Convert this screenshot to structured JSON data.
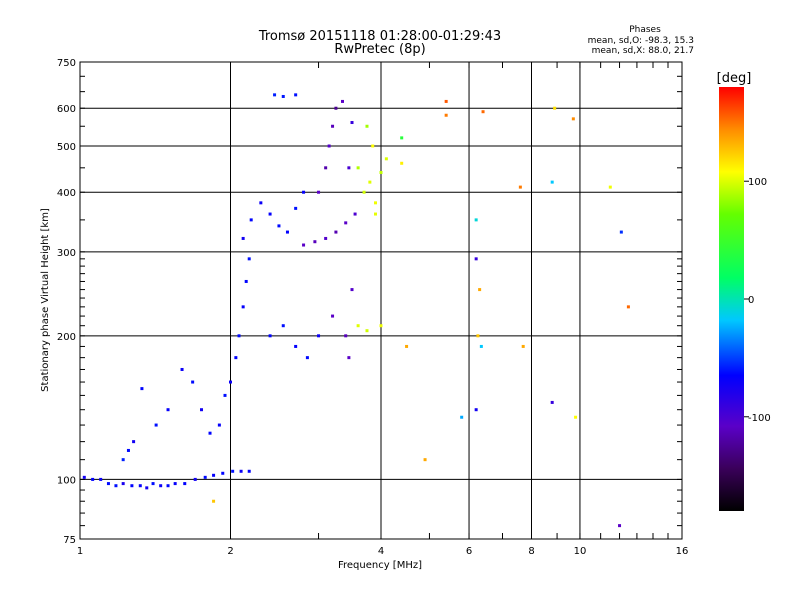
{
  "chart_data": {
    "type": "scatter",
    "title": "Tromsø 20151118 01:28:00-01:29:43",
    "subtitle": "RwPretec (8p)",
    "xlabel": "Frequency [MHz]",
    "ylabel": "Stationary phase Virtual Height [km]",
    "x_scale": "log",
    "y_scale": "log",
    "xlim": [
      1,
      16
    ],
    "ylim": [
      75,
      750
    ],
    "x_ticks": [
      1,
      2,
      4,
      6,
      8,
      10,
      16
    ],
    "x_tick_labels": [
      "1",
      "2",
      "4",
      "6",
      "8",
      "10",
      "16"
    ],
    "y_ticks": [
      75,
      100,
      200,
      300,
      400,
      500,
      600,
      750
    ],
    "y_tick_labels": [
      "75",
      "100",
      "200",
      "300",
      "400",
      "500",
      "600",
      "750"
    ],
    "grid": true,
    "stats": {
      "heading": "Phases",
      "line_o": "mean, sd,O: -98.3, 15.3",
      "line_x": "mean, sd,X:  88.0, 21.7"
    },
    "colorbar": {
      "label": "[deg]",
      "range": [
        -180,
        180
      ],
      "ticks": [
        100,
        0,
        -100
      ],
      "tick_labels": [
        "100",
        "0",
        "-100"
      ]
    },
    "series": [
      {
        "values": [
          {
            "x": 1.02,
            "y": 101,
            "phase": -110
          },
          {
            "x": 1.06,
            "y": 100,
            "phase": -105
          },
          {
            "x": 1.1,
            "y": 100,
            "phase": -108
          },
          {
            "x": 1.14,
            "y": 98,
            "phase": -102
          },
          {
            "x": 1.18,
            "y": 97,
            "phase": -100
          },
          {
            "x": 1.22,
            "y": 98,
            "phase": -112
          },
          {
            "x": 1.27,
            "y": 97,
            "phase": -104
          },
          {
            "x": 1.32,
            "y": 97,
            "phase": -106
          },
          {
            "x": 1.36,
            "y": 96,
            "phase": -110
          },
          {
            "x": 1.4,
            "y": 98,
            "phase": -101
          },
          {
            "x": 1.45,
            "y": 97,
            "phase": -108
          },
          {
            "x": 1.5,
            "y": 97,
            "phase": -103
          },
          {
            "x": 1.55,
            "y": 98,
            "phase": -107
          },
          {
            "x": 1.62,
            "y": 98,
            "phase": -105
          },
          {
            "x": 1.7,
            "y": 100,
            "phase": -110
          },
          {
            "x": 1.78,
            "y": 101,
            "phase": -102
          },
          {
            "x": 1.85,
            "y": 102,
            "phase": -106
          },
          {
            "x": 1.93,
            "y": 103,
            "phase": -104
          },
          {
            "x": 2.02,
            "y": 104,
            "phase": -100
          },
          {
            "x": 2.1,
            "y": 104,
            "phase": -108
          },
          {
            "x": 2.18,
            "y": 104,
            "phase": -105
          },
          {
            "x": 1.22,
            "y": 110,
            "phase": -95
          },
          {
            "x": 1.25,
            "y": 115,
            "phase": -102
          },
          {
            "x": 1.28,
            "y": 120,
            "phase": -110
          },
          {
            "x": 1.33,
            "y": 155,
            "phase": -104
          },
          {
            "x": 1.42,
            "y": 130,
            "phase": -100
          },
          {
            "x": 1.5,
            "y": 140,
            "phase": -106
          },
          {
            "x": 1.6,
            "y": 170,
            "phase": -108
          },
          {
            "x": 1.68,
            "y": 160,
            "phase": -102
          },
          {
            "x": 1.75,
            "y": 140,
            "phase": -110
          },
          {
            "x": 1.82,
            "y": 125,
            "phase": -104
          },
          {
            "x": 1.9,
            "y": 130,
            "phase": -106
          },
          {
            "x": 1.95,
            "y": 150,
            "phase": -100
          },
          {
            "x": 2.0,
            "y": 160,
            "phase": -108
          },
          {
            "x": 2.05,
            "y": 180,
            "phase": -105
          },
          {
            "x": 2.08,
            "y": 200,
            "phase": -102
          },
          {
            "x": 2.12,
            "y": 230,
            "phase": -106
          },
          {
            "x": 2.15,
            "y": 260,
            "phase": -104
          },
          {
            "x": 2.18,
            "y": 290,
            "phase": -100
          },
          {
            "x": 2.12,
            "y": 320,
            "phase": -110
          },
          {
            "x": 2.2,
            "y": 350,
            "phase": -104
          },
          {
            "x": 2.3,
            "y": 380,
            "phase": -108
          },
          {
            "x": 2.4,
            "y": 360,
            "phase": -106
          },
          {
            "x": 2.5,
            "y": 340,
            "phase": -102
          },
          {
            "x": 2.6,
            "y": 330,
            "phase": -105
          },
          {
            "x": 2.7,
            "y": 370,
            "phase": -100
          },
          {
            "x": 2.8,
            "y": 400,
            "phase": -106
          },
          {
            "x": 2.45,
            "y": 640,
            "phase": -95
          },
          {
            "x": 2.55,
            "y": 635,
            "phase": -98
          },
          {
            "x": 2.7,
            "y": 640,
            "phase": -100
          },
          {
            "x": 3.0,
            "y": 400,
            "phase": -130
          },
          {
            "x": 3.1,
            "y": 450,
            "phase": -135
          },
          {
            "x": 3.15,
            "y": 500,
            "phase": -128
          },
          {
            "x": 3.2,
            "y": 550,
            "phase": -132
          },
          {
            "x": 3.25,
            "y": 600,
            "phase": -140
          },
          {
            "x": 3.35,
            "y": 620,
            "phase": -130
          },
          {
            "x": 3.45,
            "y": 450,
            "phase": -125
          },
          {
            "x": 3.5,
            "y": 560,
            "phase": -120
          },
          {
            "x": 2.8,
            "y": 310,
            "phase": -130
          },
          {
            "x": 2.95,
            "y": 315,
            "phase": -132
          },
          {
            "x": 3.1,
            "y": 320,
            "phase": -128
          },
          {
            "x": 3.25,
            "y": 330,
            "phase": -134
          },
          {
            "x": 3.4,
            "y": 345,
            "phase": -130
          },
          {
            "x": 3.55,
            "y": 360,
            "phase": -126
          },
          {
            "x": 2.4,
            "y": 200,
            "phase": -104
          },
          {
            "x": 2.55,
            "y": 210,
            "phase": -100
          },
          {
            "x": 2.7,
            "y": 190,
            "phase": -106
          },
          {
            "x": 2.85,
            "y": 180,
            "phase": -102
          },
          {
            "x": 3.0,
            "y": 200,
            "phase": -108
          },
          {
            "x": 3.2,
            "y": 220,
            "phase": -130
          },
          {
            "x": 3.4,
            "y": 200,
            "phase": -132
          },
          {
            "x": 3.5,
            "y": 250,
            "phase": -128
          },
          {
            "x": 3.45,
            "y": 180,
            "phase": -130
          },
          {
            "x": 3.6,
            "y": 450,
            "phase": 75
          },
          {
            "x": 3.7,
            "y": 400,
            "phase": 85
          },
          {
            "x": 3.8,
            "y": 420,
            "phase": 90
          },
          {
            "x": 3.9,
            "y": 380,
            "phase": 95
          },
          {
            "x": 4.0,
            "y": 440,
            "phase": 80
          },
          {
            "x": 4.1,
            "y": 470,
            "phase": 88
          },
          {
            "x": 3.85,
            "y": 500,
            "phase": 100
          },
          {
            "x": 3.75,
            "y": 550,
            "phase": 70
          },
          {
            "x": 3.9,
            "y": 360,
            "phase": 92
          },
          {
            "x": 3.6,
            "y": 210,
            "phase": 90
          },
          {
            "x": 3.75,
            "y": 205,
            "phase": 85
          },
          {
            "x": 4.0,
            "y": 210,
            "phase": 95
          },
          {
            "x": 4.5,
            "y": 190,
            "phase": 130
          },
          {
            "x": 4.4,
            "y": 520,
            "phase": 20
          },
          {
            "x": 4.4,
            "y": 460,
            "phase": 105
          },
          {
            "x": 5.4,
            "y": 620,
            "phase": 155
          },
          {
            "x": 5.4,
            "y": 580,
            "phase": 145
          },
          {
            "x": 6.4,
            "y": 590,
            "phase": 150
          },
          {
            "x": 7.6,
            "y": 410,
            "phase": 145
          },
          {
            "x": 8.9,
            "y": 600,
            "phase": 110
          },
          {
            "x": 9.7,
            "y": 570,
            "phase": 140
          },
          {
            "x": 8.8,
            "y": 420,
            "phase": -40
          },
          {
            "x": 11.5,
            "y": 410,
            "phase": 95
          },
          {
            "x": 12.1,
            "y": 330,
            "phase": -90
          },
          {
            "x": 12.5,
            "y": 230,
            "phase": 150
          },
          {
            "x": 6.2,
            "y": 350,
            "phase": -30
          },
          {
            "x": 6.2,
            "y": 290,
            "phase": -120
          },
          {
            "x": 6.3,
            "y": 250,
            "phase": 130
          },
          {
            "x": 6.25,
            "y": 200,
            "phase": 120
          },
          {
            "x": 6.35,
            "y": 190,
            "phase": -40
          },
          {
            "x": 7.7,
            "y": 190,
            "phase": 130
          },
          {
            "x": 5.8,
            "y": 135,
            "phase": -50
          },
          {
            "x": 6.2,
            "y": 140,
            "phase": -110
          },
          {
            "x": 8.8,
            "y": 145,
            "phase": -120
          },
          {
            "x": 9.8,
            "y": 135,
            "phase": 100
          },
          {
            "x": 12.0,
            "y": 80,
            "phase": -130
          },
          {
            "x": 4.9,
            "y": 110,
            "phase": 130
          },
          {
            "x": 1.85,
            "y": 90,
            "phase": 120
          }
        ]
      }
    ]
  }
}
